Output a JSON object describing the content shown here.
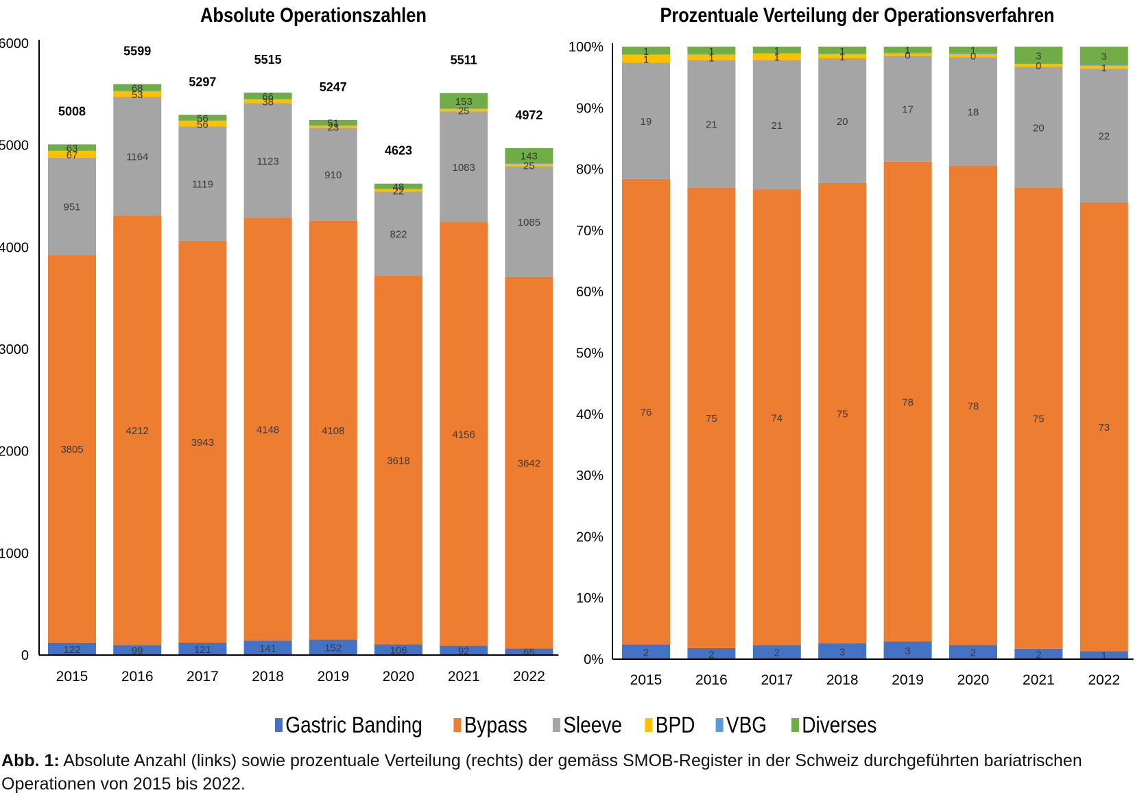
{
  "chart_data": [
    {
      "type": "bar",
      "stacked": true,
      "title": "Absolute Operationszahlen",
      "xlabel": "",
      "ylabel": "",
      "ylim": [
        0,
        6000
      ],
      "yticks": [
        "0",
        "1000",
        "2000",
        "3000",
        "4000",
        "5000",
        "6000"
      ],
      "ytick_values": [
        0,
        1000,
        2000,
        3000,
        4000,
        5000,
        6000
      ],
      "grid": false,
      "categories": [
        "2015",
        "2016",
        "2017",
        "2018",
        "2019",
        "2020",
        "2021",
        "2022"
      ],
      "series": [
        {
          "name": "Gastric Banding",
          "color": "#4472C4",
          "values": [
            122,
            99,
            121,
            141,
            152,
            106,
            92,
            65
          ],
          "labels": [
            "122",
            "99",
            "121",
            "141",
            "152",
            "106",
            "92",
            "65"
          ]
        },
        {
          "name": "Bypass",
          "color": "#ED7D31",
          "values": [
            3805,
            4212,
            3943,
            4148,
            4108,
            3618,
            4156,
            3642
          ],
          "labels": [
            "3805",
            "4212",
            "3943",
            "4148",
            "4108",
            "3618",
            "4156",
            "3642"
          ]
        },
        {
          "name": "Sleeve",
          "color": "#A5A5A5",
          "values": [
            951,
            1164,
            1119,
            1123,
            910,
            822,
            1083,
            1085
          ],
          "labels": [
            "951",
            "1164",
            "1119",
            "1123",
            "910",
            "822",
            "1083",
            "1085"
          ]
        },
        {
          "name": "BPD",
          "color": "#FFC000",
          "values": [
            67,
            53,
            56,
            38,
            23,
            22,
            25,
            25
          ],
          "labels": [
            "67",
            "53",
            "56",
            "38",
            "23",
            "22",
            "25",
            "25"
          ]
        },
        {
          "name": "VBG",
          "color": "#5B9BD5",
          "values": [
            0,
            3,
            2,
            0,
            3,
            7,
            2,
            12
          ],
          "labels": [
            "",
            "",
            "",
            "",
            "",
            "",
            "",
            ""
          ]
        },
        {
          "name": "Diverses",
          "color": "#70AD47",
          "values": [
            63,
            68,
            56,
            66,
            51,
            48,
            153,
            143
          ],
          "labels": [
            "63",
            "68",
            "56",
            "66",
            "51",
            "48",
            "153",
            "143"
          ]
        }
      ],
      "totals": [
        "5008",
        "5599",
        "5297",
        "5515",
        "5247",
        "4623",
        "5511",
        "4972"
      ],
      "total_values": [
        5008,
        5599,
        5297,
        5515,
        5247,
        4623,
        5511,
        4972
      ]
    },
    {
      "type": "bar",
      "stacked": true,
      "percent": true,
      "title": "Prozentuale Verteilung der Operationsverfahren",
      "xlabel": "",
      "ylabel": "",
      "ylim": [
        0,
        100
      ],
      "yticks": [
        "0%",
        "10%",
        "20%",
        "30%",
        "40%",
        "50%",
        "60%",
        "70%",
        "80%",
        "90%",
        "100%"
      ],
      "ytick_values": [
        0,
        10,
        20,
        30,
        40,
        50,
        60,
        70,
        80,
        90,
        100
      ],
      "grid": false,
      "categories": [
        "2015",
        "2016",
        "2017",
        "2018",
        "2019",
        "2020",
        "2021",
        "2022"
      ],
      "series": [
        {
          "name": "Gastric Banding",
          "color": "#4472C4",
          "values": [
            2.4,
            1.8,
            2.3,
            2.6,
            2.9,
            2.3,
            1.7,
            1.3
          ],
          "labels": [
            "2",
            "2",
            "2",
            "3",
            "3",
            "2",
            "2",
            "1"
          ]
        },
        {
          "name": "Bypass",
          "color": "#ED7D31",
          "values": [
            76.0,
            75.2,
            74.4,
            75.2,
            78.3,
            78.3,
            75.4,
            73.3
          ],
          "labels": [
            "76",
            "75",
            "74",
            "75",
            "78",
            "78",
            "75",
            "73"
          ]
        },
        {
          "name": "Sleeve",
          "color": "#A5A5A5",
          "values": [
            19.0,
            20.8,
            21.1,
            20.4,
            17.3,
            17.8,
            19.7,
            21.8
          ],
          "labels": [
            "19",
            "21",
            "21",
            "20",
            "17",
            "18",
            "20",
            "22"
          ]
        },
        {
          "name": "BPD",
          "color": "#FFC000",
          "values": [
            1.3,
            0.9,
            1.1,
            0.7,
            0.4,
            0.5,
            0.5,
            0.5
          ],
          "labels": [
            "1",
            "1",
            "1",
            "1",
            "0",
            "0",
            "0",
            "1"
          ]
        },
        {
          "name": "VBG",
          "color": "#5B9BD5",
          "values": [
            0.0,
            0.1,
            0.0,
            0.0,
            0.1,
            0.2,
            0.0,
            0.2
          ],
          "labels": [
            "",
            "",
            "",
            "",
            "",
            "",
            "",
            ""
          ]
        },
        {
          "name": "Diverses",
          "color": "#70AD47",
          "values": [
            1.3,
            1.2,
            1.1,
            1.2,
            1.0,
            1.0,
            2.8,
            2.9
          ],
          "labels": [
            "1",
            "1",
            "1",
            "1",
            "1",
            "1",
            "3",
            "3"
          ]
        }
      ]
    }
  ],
  "legend": {
    "placement": "bottom-center",
    "items": [
      {
        "label": "Gastric Banding",
        "color": "#4472C4"
      },
      {
        "label": "Bypass",
        "color": "#ED7D31"
      },
      {
        "label": "Sleeve",
        "color": "#A5A5A5"
      },
      {
        "label": "BPD",
        "color": "#FFC000"
      },
      {
        "label": "VBG",
        "color": "#5B9BD5"
      },
      {
        "label": "Diverses",
        "color": "#70AD47"
      }
    ]
  },
  "caption": {
    "label": "Abb. 1:",
    "text": " Absolute Anzahl (links) sowie prozentuale Verteilung (rechts) der gemäss SMOB-Register in der Schweiz durchgeführten bariatrischen Operationen von 2015 bis 2022."
  }
}
